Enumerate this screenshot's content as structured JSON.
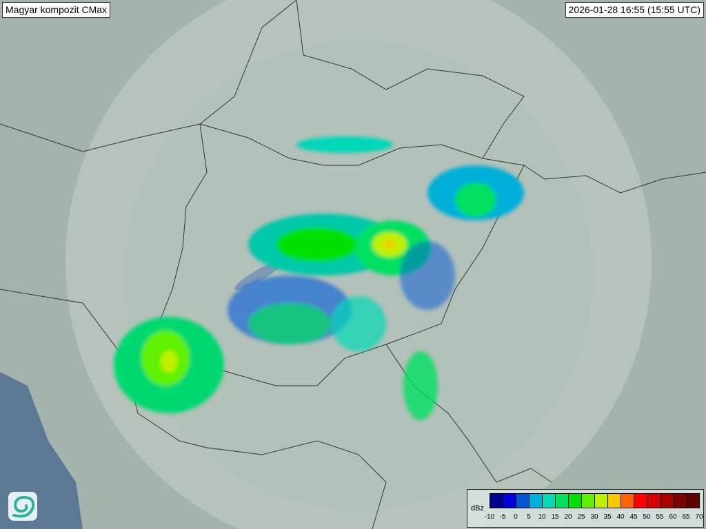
{
  "title": "Magyar kompozit  CMax",
  "timestamp": "2026-01-28 16:55 (15:55 UTC)",
  "legend": {
    "unit": "dBz",
    "ticks": [
      "-10",
      "-5",
      "0",
      "5",
      "10",
      "15",
      "20",
      "25",
      "30",
      "35",
      "40",
      "45",
      "50",
      "55",
      "60",
      "65",
      "70"
    ],
    "colors": [
      "#000090",
      "#0000d8",
      "#0058d8",
      "#00b0d8",
      "#00d8b8",
      "#00e060",
      "#00e000",
      "#60f000",
      "#c0f000",
      "#f8c800",
      "#ff6400",
      "#ff0000",
      "#d80000",
      "#a80000",
      "#800000",
      "#600000"
    ]
  },
  "logo": {
    "icon": "swirl-logo-icon"
  }
}
